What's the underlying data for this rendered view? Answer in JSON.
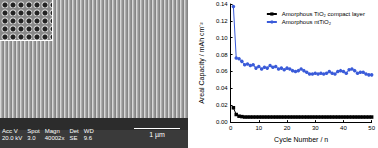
{
  "micrograph": {
    "fields": [
      {
        "label": "Acc V",
        "value": "20.0 kV"
      },
      {
        "label": "Spot",
        "value": "3.0"
      },
      {
        "label": "Magn",
        "value": "40002x"
      },
      {
        "label": "Det",
        "value": "SE"
      },
      {
        "label": "WD",
        "value": "9.6"
      }
    ],
    "scale_bar": "1 µm"
  },
  "chart_data": {
    "type": "line",
    "x_label": "Cycle Number / n",
    "y_label": "Areal Capacity / mAh cm⁻²",
    "x": [
      1,
      2,
      3,
      4,
      5,
      6,
      7,
      8,
      9,
      10,
      11,
      12,
      13,
      14,
      15,
      16,
      17,
      18,
      19,
      20,
      21,
      22,
      23,
      24,
      25,
      26,
      27,
      28,
      29,
      30,
      31,
      32,
      33,
      34,
      35,
      36,
      37,
      38,
      39,
      40,
      41,
      42,
      43,
      44,
      45,
      46,
      47,
      48,
      49,
      50
    ],
    "series": [
      {
        "name": "Amorphous TiO₂ compact layer",
        "color": "#000000",
        "marker": "square",
        "values": [
          0.017,
          0.009,
          0.007,
          0.0065,
          0.006,
          0.006,
          0.006,
          0.006,
          0.006,
          0.006,
          0.006,
          0.006,
          0.006,
          0.006,
          0.006,
          0.006,
          0.006,
          0.006,
          0.006,
          0.006,
          0.006,
          0.006,
          0.006,
          0.006,
          0.006,
          0.006,
          0.006,
          0.006,
          0.006,
          0.006,
          0.006,
          0.006,
          0.006,
          0.006,
          0.006,
          0.006,
          0.006,
          0.006,
          0.006,
          0.006,
          0.006,
          0.006,
          0.006,
          0.006,
          0.006,
          0.006,
          0.006,
          0.006,
          0.006,
          0.006
        ]
      },
      {
        "name": "Amorphous ntTiO₂",
        "color": "#3a5bd9",
        "marker": "circle",
        "values": [
          0.137,
          0.076,
          0.075,
          0.072,
          0.068,
          0.069,
          0.067,
          0.068,
          0.064,
          0.066,
          0.063,
          0.065,
          0.064,
          0.067,
          0.065,
          0.066,
          0.063,
          0.064,
          0.062,
          0.064,
          0.063,
          0.061,
          0.06,
          0.061,
          0.063,
          0.061,
          0.059,
          0.057,
          0.057,
          0.058,
          0.057,
          0.058,
          0.057,
          0.058,
          0.06,
          0.058,
          0.057,
          0.06,
          0.061,
          0.06,
          0.058,
          0.062,
          0.063,
          0.061,
          0.058,
          0.059,
          0.059,
          0.057,
          0.056,
          0.056
        ]
      }
    ],
    "xlim": [
      0,
      50
    ],
    "xticks": [
      0,
      10,
      20,
      30,
      40,
      50
    ],
    "ylim": [
      0,
      0.14
    ],
    "yticks": [
      {
        "value": 0,
        "label": "0.00"
      },
      0.02,
      0.04,
      0.06,
      0.08,
      {
        "value": 0.1,
        "label": "0.10"
      },
      0.12,
      0.14
    ],
    "grid": false,
    "legend": "top-right"
  }
}
